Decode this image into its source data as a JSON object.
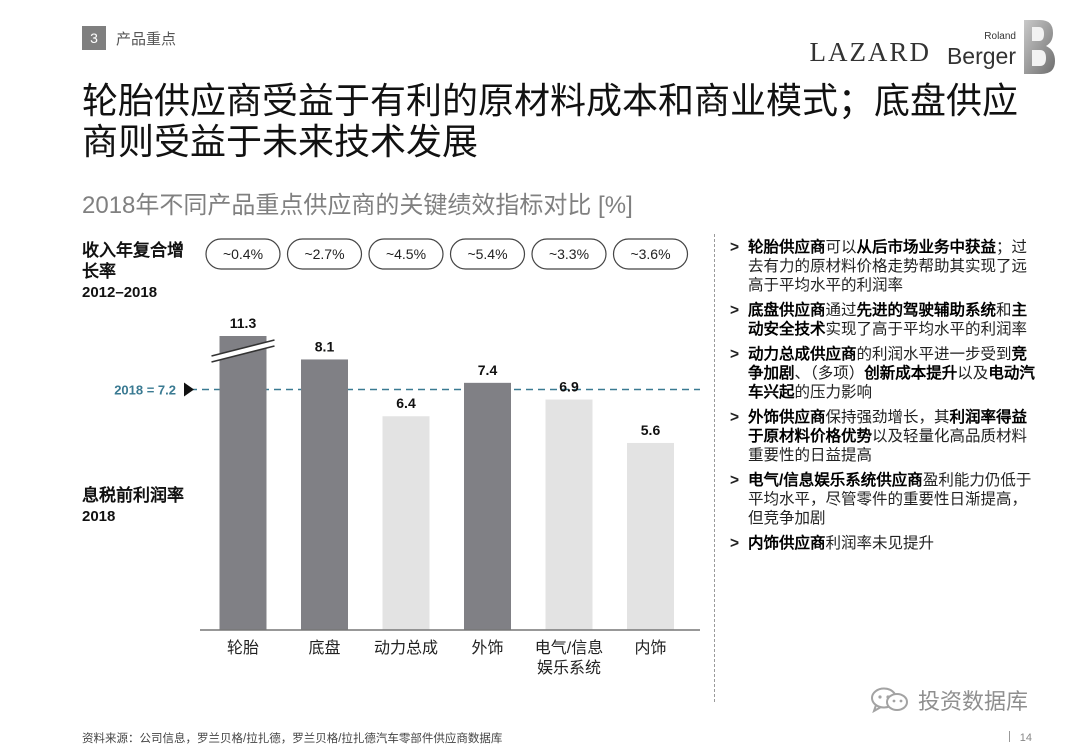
{
  "section": {
    "number": "3",
    "label": "产品重点"
  },
  "logos": {
    "lazard": "LAZARD",
    "rb_top": "Roland",
    "rb_main": "Berger"
  },
  "title": "轮胎供应商受益于有利的原材料成本和商业模式；底盘供应商则受益于未来技术发展",
  "subtitle": "2018年不同产品重点供应商的关键绩效指标对比 [%]",
  "cagr_label": {
    "line1": "收入年复合增",
    "line2": "长率",
    "years": "2012–2018"
  },
  "ebit_label": {
    "line1": "息税前利润率",
    "years": "2018"
  },
  "chart_data": {
    "type": "bar",
    "categories": [
      "轮胎",
      "底盘",
      "动力总成",
      "外饰",
      "电气/信息\n娱乐系统",
      "内饰"
    ],
    "values": [
      11.3,
      8.1,
      6.4,
      7.4,
      6.9,
      5.6
    ],
    "value_labels": [
      "11.3",
      "8.1",
      "6.4",
      "7.4",
      "6.9",
      "5.6"
    ],
    "cagr": [
      "~0.4%",
      "~2.7%",
      "~4.5%",
      "~5.4%",
      "~3.3%",
      "~3.6%"
    ],
    "axis_break_on": "轮胎",
    "reference_line": {
      "label": "2018 = 7.2",
      "value": 7.2
    },
    "colors": {
      "above_reference": "#808085",
      "below_reference": "#e3e3e3",
      "reference": "#3a7a92",
      "axis": "#777777"
    }
  },
  "bullets": [
    {
      "parts": [
        {
          "t": "轮胎供应商",
          "b": true
        },
        {
          "t": "可以",
          "b": false
        },
        {
          "t": "从后市场业务中获益",
          "b": true
        },
        {
          "t": "；过去有力的原材料价格走势帮助其实现了远高于平均水平的利润率",
          "b": false
        }
      ]
    },
    {
      "parts": [
        {
          "t": "底盘供应商",
          "b": true
        },
        {
          "t": "通过",
          "b": false
        },
        {
          "t": "先进的驾驶辅助系统",
          "b": true
        },
        {
          "t": "和",
          "b": false
        },
        {
          "t": "主动安全技术",
          "b": true
        },
        {
          "t": "实现了高于平均水平的利润率",
          "b": false
        }
      ]
    },
    {
      "parts": [
        {
          "t": "动力总成供应商",
          "b": true
        },
        {
          "t": "的利润水平进一步受到",
          "b": false
        },
        {
          "t": "竞争加剧",
          "b": true
        },
        {
          "t": "、（多项）",
          "b": false
        },
        {
          "t": "创新成本提升",
          "b": true
        },
        {
          "t": "以及",
          "b": false
        },
        {
          "t": "电动汽车兴起",
          "b": true
        },
        {
          "t": "的压力影响",
          "b": false
        }
      ]
    },
    {
      "parts": [
        {
          "t": "外饰供应商",
          "b": true
        },
        {
          "t": "保持强劲增长，其",
          "b": false
        },
        {
          "t": "利润率得益于原材料价格优势",
          "b": true
        },
        {
          "t": "以及轻量化高品质材料重要性的日益提高",
          "b": false
        }
      ]
    },
    {
      "parts": [
        {
          "t": "电气/信息娱乐系统供应商",
          "b": true
        },
        {
          "t": "盈利能力仍低于平均水平，尽管零件的重要性日渐提高，但竞争加剧",
          "b": false
        }
      ]
    },
    {
      "parts": [
        {
          "t": "内饰供应商",
          "b": true
        },
        {
          "t": "利润率未见提升",
          "b": false
        }
      ]
    }
  ],
  "bullet_marker": ">",
  "source": "资料来源：公司信息，罗兰贝格/拉扎德，罗兰贝格/拉扎德汽车零部件供应商数据库",
  "page_number": "14",
  "watermark": "投资数据库"
}
